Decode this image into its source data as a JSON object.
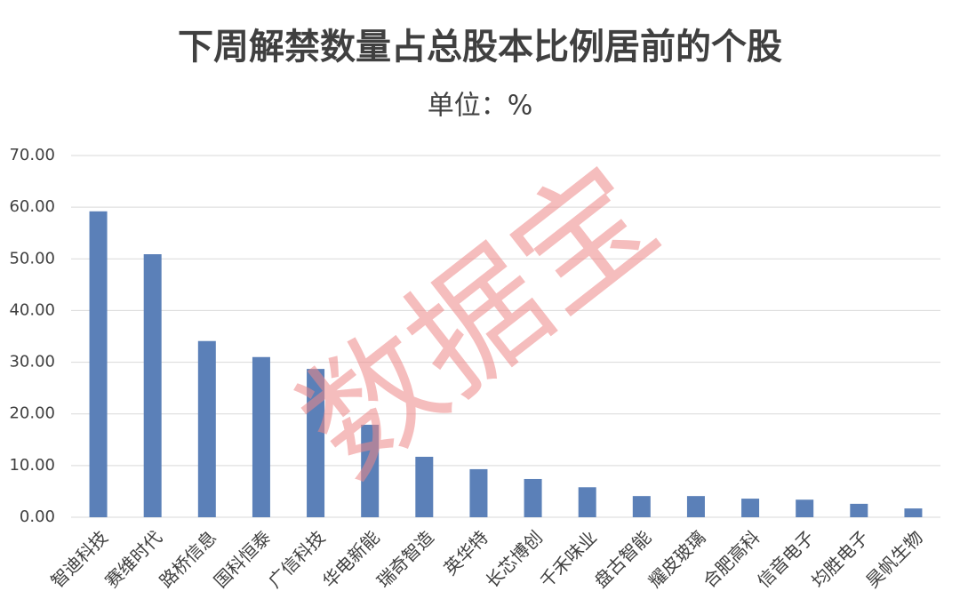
{
  "chart_data": {
    "type": "bar",
    "title": "下周解禁数量占总股本比例居前的个股",
    "subtitle": "单位：%",
    "watermark": "数据宝",
    "categories": [
      "智迪科技",
      "赛维时代",
      "路桥信息",
      "国科恒泰",
      "广信科技",
      "华电新能",
      "瑞奇智造",
      "英华特",
      "长芯博创",
      "千禾味业",
      "盘古智能",
      "耀皮玻璃",
      "合肥高科",
      "信音电子",
      "均胜电子",
      "昊帆生物"
    ],
    "values": [
      59.2,
      50.9,
      34.1,
      31.0,
      28.7,
      17.9,
      11.7,
      9.3,
      7.4,
      5.8,
      4.1,
      4.1,
      3.6,
      3.4,
      2.6,
      1.7
    ],
    "color": "#5b80b8",
    "ylim": [
      0,
      70
    ],
    "yticks": [
      {
        "value": 0,
        "label": "0.00"
      },
      {
        "value": 10,
        "label": "10.00"
      },
      {
        "value": 20,
        "label": "20.00"
      },
      {
        "value": 30,
        "label": "30.00"
      },
      {
        "value": 40,
        "label": "40.00"
      },
      {
        "value": 50,
        "label": "50.00"
      },
      {
        "value": 60,
        "label": "60.00"
      },
      {
        "value": 70,
        "label": "70.00"
      }
    ],
    "grid": true
  }
}
